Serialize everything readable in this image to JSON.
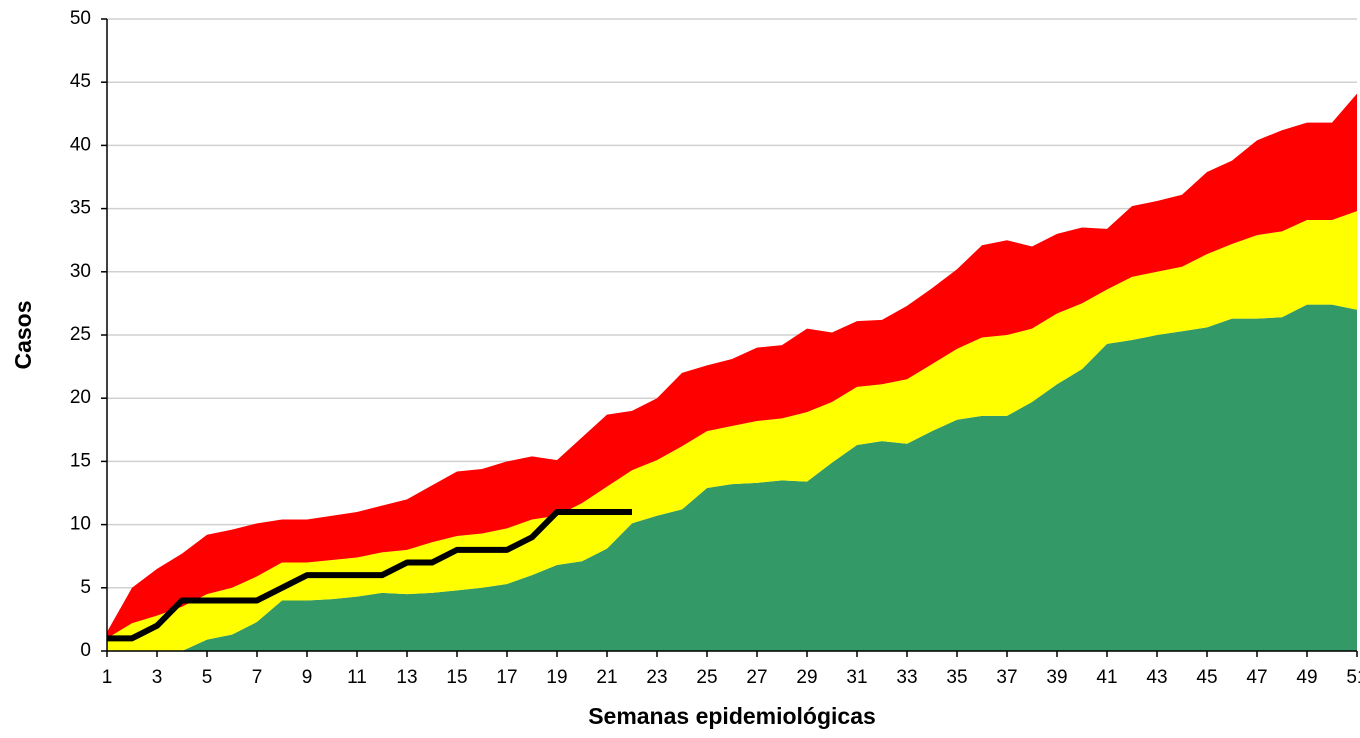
{
  "chart_data": {
    "type": "area",
    "xlabel": "Semanas epidemiológicas",
    "ylabel": "Casos",
    "x": [
      1,
      2,
      3,
      4,
      5,
      6,
      7,
      8,
      9,
      10,
      11,
      12,
      13,
      14,
      15,
      16,
      17,
      18,
      19,
      20,
      21,
      22,
      23,
      24,
      25,
      26,
      27,
      28,
      29,
      30,
      31,
      32,
      33,
      34,
      35,
      36,
      37,
      38,
      39,
      40,
      41,
      42,
      43,
      44,
      45,
      46,
      47,
      48,
      49,
      50,
      51
    ],
    "xlim": [
      1,
      51
    ],
    "xticks": [
      1,
      3,
      5,
      7,
      9,
      11,
      13,
      15,
      17,
      19,
      21,
      23,
      25,
      27,
      29,
      31,
      33,
      35,
      37,
      39,
      41,
      43,
      45,
      47,
      49,
      51
    ],
    "ylim": [
      0,
      50
    ],
    "yticks": [
      0,
      5,
      10,
      15,
      20,
      25,
      30,
      35,
      40,
      45,
      50
    ],
    "grid": true,
    "stacked": true,
    "series": [
      {
        "color": "#339966",
        "values": [
          0,
          0,
          0,
          0,
          0.9,
          1.3,
          2.3,
          4,
          4,
          4.1,
          4.3,
          4.6,
          4.5,
          4.6,
          4.8,
          5,
          5.3,
          6,
          6.8,
          7.1,
          8.1,
          10.1,
          10.7,
          11.2,
          12.9,
          13.2,
          13.3,
          13.5,
          13.4,
          14.9,
          16.3,
          16.6,
          16.4,
          17.4,
          18.3,
          18.6,
          18.6,
          19.7,
          21.1,
          22.3,
          24.3,
          24.6,
          25,
          25.3,
          25.6,
          26.3,
          26.3,
          26.4,
          27.4,
          27.4,
          27
        ]
      },
      {
        "color": "#ffff00",
        "values": [
          1,
          2.2,
          2.8,
          3.5,
          3.6,
          3.7,
          3.6,
          3,
          3,
          3.1,
          3.1,
          3.2,
          3.5,
          4,
          4.3,
          4.3,
          4.4,
          4.4,
          3.9,
          4.6,
          4.9,
          4.2,
          4.4,
          5,
          4.5,
          4.6,
          4.9,
          4.9,
          5.5,
          4.8,
          4.6,
          4.5,
          5.1,
          5.3,
          5.6,
          6.2,
          6.4,
          5.8,
          5.6,
          5.2,
          4.3,
          5,
          5,
          5.1,
          5.8,
          5.9,
          6.6,
          6.8,
          6.7,
          6.7,
          7.8
        ]
      },
      {
        "color": "#ff0000",
        "values": [
          0.5,
          2.8,
          3.7,
          4.2,
          4.7,
          4.6,
          4.2,
          3.4,
          3.4,
          3.5,
          3.6,
          3.7,
          4,
          4.5,
          5.1,
          5.1,
          5.3,
          5,
          4.4,
          5.2,
          5.7,
          4.7,
          4.9,
          5.8,
          5.2,
          5.3,
          5.8,
          5.8,
          6.6,
          5.5,
          5.2,
          5.1,
          5.8,
          6,
          6.3,
          7.3,
          7.5,
          6.5,
          6.3,
          6,
          4.8,
          5.6,
          5.6,
          5.7,
          6.5,
          6.6,
          7.5,
          8,
          7.7,
          7.7,
          9.3
        ]
      },
      {
        "type": "line",
        "color": "#000000",
        "values": [
          1,
          1,
          2,
          4,
          4,
          4,
          4,
          5,
          6,
          6,
          6,
          6,
          7,
          7,
          8,
          8,
          8,
          9,
          11,
          11,
          11,
          11,
          null,
          null,
          null,
          null,
          null,
          null,
          null,
          null,
          null,
          null,
          null,
          null,
          null,
          null,
          null,
          null,
          null,
          null,
          null,
          null,
          null,
          null,
          null,
          null,
          null,
          null,
          null,
          null,
          null
        ]
      }
    ]
  }
}
